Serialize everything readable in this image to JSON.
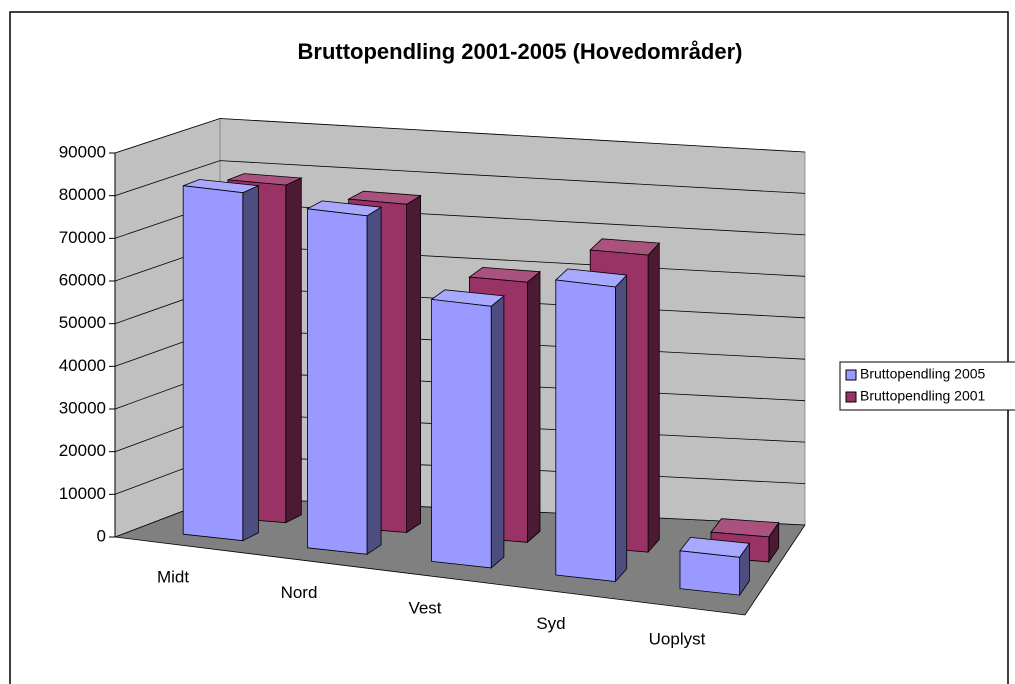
{
  "chart_data": {
    "type": "bar3d",
    "title": "Bruttopendling 2001-2005 (Hovedområder)",
    "categories": [
      "Midt",
      "Nord",
      "Vest",
      "Syd",
      "Uoplyst"
    ],
    "series": [
      {
        "name": "Bruttopendling 2005",
        "color": "#9999ff",
        "values": [
          82000,
          80000,
          62000,
          70000,
          9000
        ]
      },
      {
        "name": "Bruttopendling 2001",
        "color": "#993366",
        "values": [
          80000,
          78000,
          62000,
          71000,
          6000
        ]
      }
    ],
    "ylim": [
      0,
      90000
    ],
    "yticks": [
      0,
      10000,
      20000,
      30000,
      40000,
      50000,
      60000,
      70000,
      80000,
      90000
    ],
    "grid": true,
    "legend": "right"
  }
}
